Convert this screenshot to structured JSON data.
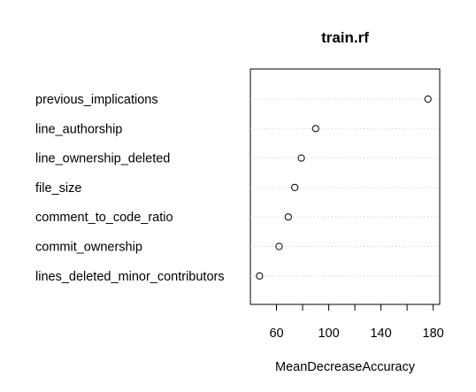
{
  "chart_data": {
    "type": "scatter",
    "title": "train.rf",
    "xlabel": "MeanDecreaseAccuracy",
    "ylabel": "",
    "xlim": [
      40,
      185
    ],
    "xticks": [
      60,
      100,
      140,
      180
    ],
    "grid": "dotted horizontal lines at each category",
    "categories": [
      "previous_implications",
      "line_authorship",
      "line_ownership_deleted",
      "file_size",
      "comment_to_code_ratio",
      "commit_ownership",
      "lines_deleted_minor_contributors"
    ],
    "values": [
      176,
      90,
      79,
      74,
      69,
      62,
      47
    ]
  }
}
